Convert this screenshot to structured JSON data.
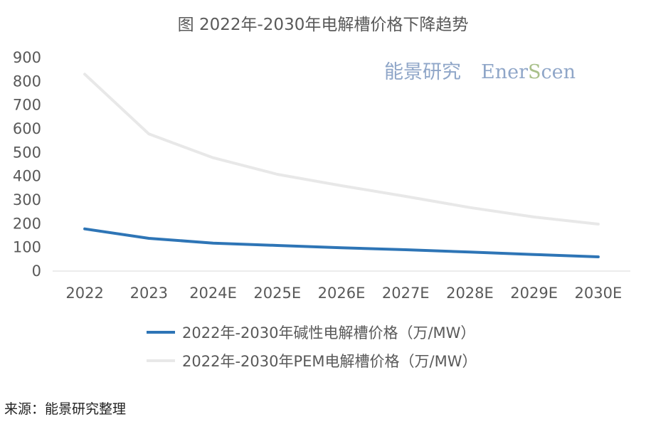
{
  "chart_data": {
    "type": "line",
    "title": "图  2022年-2030年电解槽价格下降趋势",
    "categories": [
      "2022",
      "2023",
      "2024E",
      "2025E",
      "2026E",
      "2027E",
      "2028E",
      "2029E",
      "2030E"
    ],
    "ylim": [
      0,
      900
    ],
    "yticks": [
      0,
      100,
      200,
      300,
      400,
      500,
      600,
      700,
      800,
      900
    ],
    "grid": false,
    "legend_position": "bottom",
    "series": [
      {
        "name": "2022年-2030年碱性电解槽价格（万/MW）",
        "color": "#2e75b6",
        "values": [
          178,
          138,
          118,
          108,
          98,
          90,
          80,
          70,
          60
        ]
      },
      {
        "name": "2022年-2030年PEM电解槽价格（万/MW）",
        "color": "#e8e8e8",
        "values": [
          830,
          578,
          478,
          408,
          360,
          315,
          268,
          228,
          198
        ]
      }
    ]
  },
  "watermark": {
    "chinese": "能景研究",
    "english_parts": [
      "Ener",
      "S",
      "cen"
    ],
    "colors": [
      "#8fa6c8",
      "#a9c08a",
      "#8fa6c8"
    ]
  },
  "source": "来源：能景研究整理"
}
